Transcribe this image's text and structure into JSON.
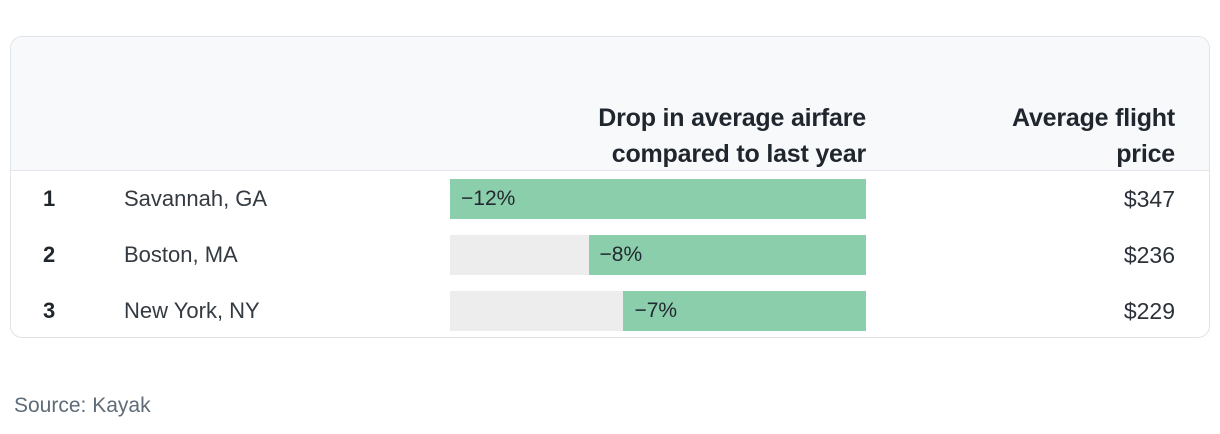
{
  "colors": {
    "bar_green": "#8bceab",
    "bar_track": "#ededee",
    "header_bg": "#f8f9fb",
    "card_border": "#e0e3e7",
    "divider": "#e4e6e9",
    "text_dark": "#1f262d",
    "text_muted": "#5d6c78"
  },
  "header": {
    "drop_column": "Drop in average airfare\ncompared to last year",
    "price_column": "Average flight\nprice"
  },
  "rows": [
    {
      "rank": "1",
      "city": "Savannah, GA",
      "drop_label": "−12%",
      "drop_width_pct": "100%",
      "price": "$347"
    },
    {
      "rank": "2",
      "city": "Boston, MA",
      "drop_label": "−8%",
      "drop_width_pct": "66.7%",
      "price": "$236"
    },
    {
      "rank": "3",
      "city": "New York, NY",
      "drop_label": "−7%",
      "drop_width_pct": "58.3%",
      "price": "$229"
    }
  ],
  "source": "Source: Kayak",
  "chart_data": {
    "type": "bar",
    "orientation": "horizontal",
    "categories": [
      "Savannah, GA",
      "Boston, MA",
      "New York, NY"
    ],
    "ranks": [
      1,
      2,
      3
    ],
    "series": [
      {
        "name": "Drop in average airfare compared to last year (%)",
        "values": [
          -12,
          -8,
          -7
        ]
      },
      {
        "name": "Average flight price ($)",
        "values": [
          347,
          236,
          229
        ]
      }
    ],
    "title": "",
    "xlabel": "",
    "ylabel": "",
    "bar_scale_max_abs": 12,
    "bars_right_anchored": true,
    "grid": false,
    "legend_position": "none",
    "annotations": [
      "−12%",
      "−8%",
      "−7%"
    ],
    "source": "Source: Kayak"
  }
}
